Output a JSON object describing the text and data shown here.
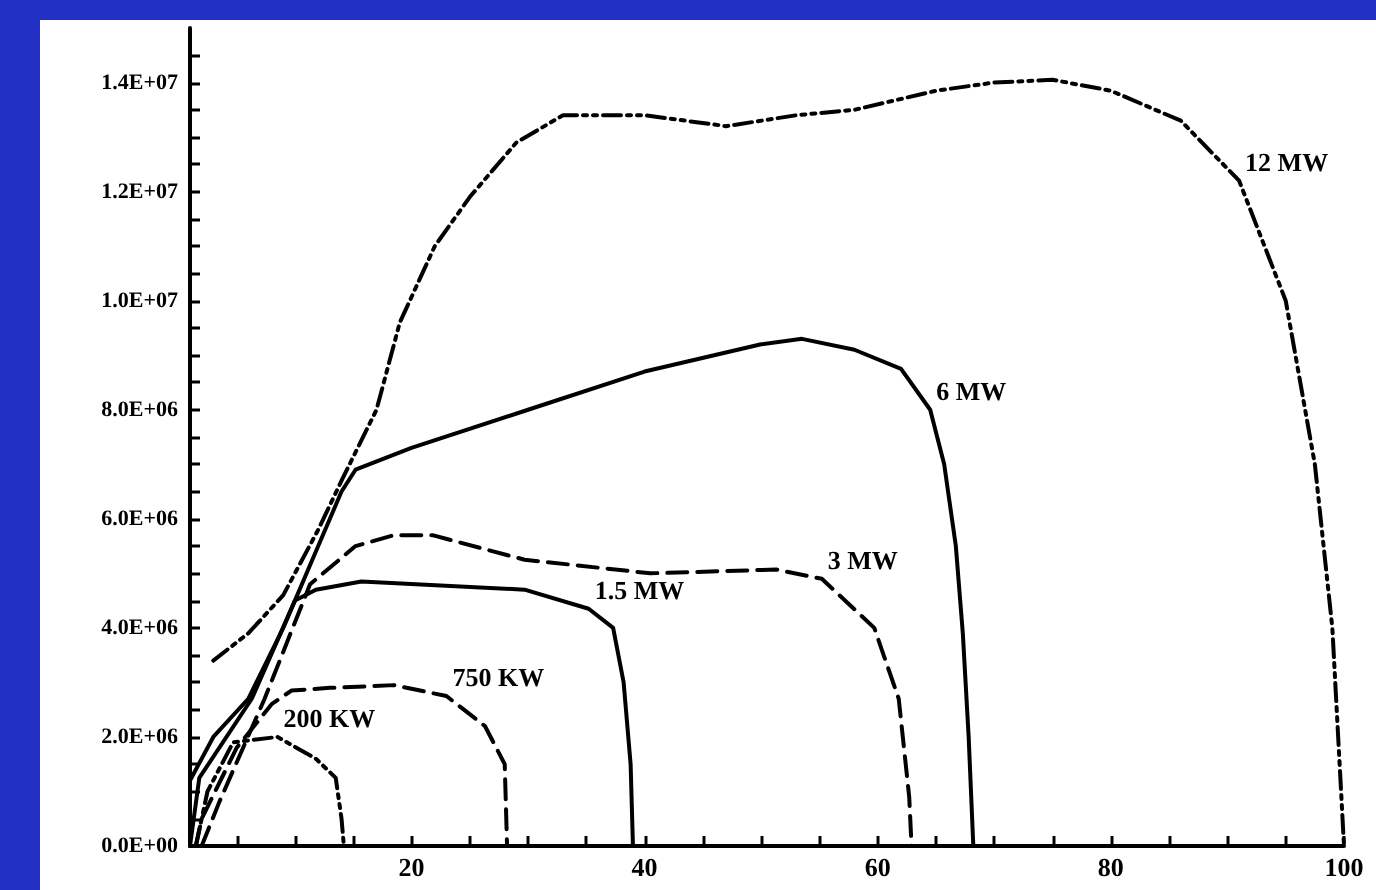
{
  "chart_data": {
    "type": "line",
    "grid": false,
    "legend": false,
    "marker": "none",
    "xlim": [
      1,
      100
    ],
    "xticks": [
      {
        "value": 5,
        "label": null
      },
      {
        "value": 10,
        "label": null
      },
      {
        "value": 15,
        "label": null
      },
      20,
      {
        "value": 25,
        "label": null
      },
      {
        "value": 30,
        "label": null
      },
      {
        "value": 35,
        "label": null
      },
      40,
      {
        "value": 45,
        "label": null
      },
      {
        "value": 50,
        "label": null
      },
      {
        "value": 55,
        "label": null
      },
      60,
      {
        "value": 65,
        "label": null
      },
      {
        "value": 70,
        "label": null
      },
      {
        "value": 75,
        "label": null
      },
      80,
      {
        "value": 85,
        "label": null
      },
      {
        "value": 90,
        "label": null
      },
      {
        "value": 95,
        "label": null
      },
      100
    ],
    "ylim": [
      0,
      15000000
    ],
    "yticks": [
      {
        "value": 0,
        "label": "0.0E+00"
      },
      {
        "value": 500000,
        "label": null
      },
      {
        "value": 1000000,
        "label": null
      },
      {
        "value": 1500000,
        "label": null
      },
      {
        "value": 2000000,
        "label": "2.0E+06"
      },
      {
        "value": 2500000,
        "label": null
      },
      {
        "value": 3000000,
        "label": null
      },
      {
        "value": 3500000,
        "label": null
      },
      {
        "value": 4000000,
        "label": "4.0E+06"
      },
      {
        "value": 4500000,
        "label": null
      },
      {
        "value": 5000000,
        "label": null
      },
      {
        "value": 5500000,
        "label": null
      },
      {
        "value": 6000000,
        "label": "6.0E+06"
      },
      {
        "value": 6500000,
        "label": null
      },
      {
        "value": 7000000,
        "label": null
      },
      {
        "value": 7500000,
        "label": null
      },
      {
        "value": 8000000,
        "label": "8.0E+06"
      },
      {
        "value": 8500000,
        "label": null
      },
      {
        "value": 9000000,
        "label": null
      },
      {
        "value": 9500000,
        "label": null
      },
      {
        "value": 10000000,
        "label": "1.0E+07"
      },
      {
        "value": 10500000,
        "label": null
      },
      {
        "value": 11000000,
        "label": null
      },
      {
        "value": 11500000,
        "label": null
      },
      {
        "value": 12000000,
        "label": "1.2E+07"
      },
      {
        "value": 12500000,
        "label": null
      },
      {
        "value": 13000000,
        "label": null
      },
      {
        "value": 13500000,
        "label": null
      },
      {
        "value": 14000000,
        "label": "1.4E+07"
      },
      {
        "value": 14500000,
        "label": null
      }
    ],
    "series": [
      {
        "name": "12 MW",
        "color": "#000000",
        "line_style": "dotted",
        "x": [
          3,
          6,
          9,
          12,
          14,
          17,
          19,
          22,
          25,
          29,
          33,
          40,
          47,
          53,
          58,
          65,
          70,
          75,
          80,
          86,
          91,
          95,
          97.5,
          99,
          100
        ],
        "values": [
          3400000,
          3900000,
          4600000,
          5800000,
          6700000,
          8000000,
          9600000,
          11000000,
          11900000,
          12900000,
          13400000,
          13400000,
          13200000,
          13400000,
          13500000,
          13850000,
          14000000,
          14050000,
          13850000,
          13300000,
          12200000,
          10000000,
          7000000,
          4000000,
          0
        ]
      },
      {
        "name": "6 MW",
        "color": "#000000",
        "line_style": "solid",
        "x": [
          1,
          3,
          6,
          9,
          12,
          14,
          15.2,
          20,
          30,
          40,
          50,
          53.5,
          58,
          62,
          64.5,
          65.7,
          66.7,
          67.3,
          67.8,
          68.2
        ],
        "values": [
          1200000,
          2000000,
          2700000,
          4000000,
          5500000,
          6500000,
          6900000,
          7300000,
          8000000,
          8700000,
          9200000,
          9300000,
          9100000,
          8750000,
          8000000,
          7000000,
          5500000,
          3900000,
          2000000,
          0
        ]
      },
      {
        "name": "3 MW",
        "color": "#000000",
        "line_style": "dashed",
        "x": [
          2,
          3.5,
          7.4,
          11.3,
          15.2,
          18.5,
          21.8,
          29.7,
          40.5,
          51.3,
          55.2,
          59.7,
          61.8,
          62.7,
          62.9
        ],
        "values": [
          0,
          800000,
          2700000,
          4800000,
          5500000,
          5700000,
          5700000,
          5250000,
          5000000,
          5070000,
          4900000,
          4000000,
          2700000,
          900000,
          0
        ]
      },
      {
        "name": "1.5 MW",
        "color": "#000000",
        "line_style": "solid",
        "x": [
          1,
          1.8,
          6.3,
          10,
          11.8,
          15.7,
          29.7,
          35.2,
          37.3,
          38.2,
          38.8,
          39
        ],
        "values": [
          0,
          1250000,
          2700000,
          4500000,
          4700000,
          4850000,
          4700000,
          4350000,
          4000000,
          3000000,
          1500000,
          0
        ]
      },
      {
        "name": "750 KW",
        "color": "#000000",
        "line_style": "dashed",
        "x": [
          1.5,
          2,
          5,
          8,
          9.7,
          13,
          18.5,
          23,
          26.3,
          28,
          28.2
        ],
        "values": [
          0,
          500000,
          1800000,
          2600000,
          2850000,
          2900000,
          2950000,
          2750000,
          2200000,
          1500000,
          0
        ]
      },
      {
        "name": "200 KW",
        "color": "#000000",
        "line_style": "dotted",
        "x": [
          1.5,
          2.5,
          4.7,
          8.5,
          11.8,
          13.5,
          14,
          14.2
        ],
        "values": [
          0,
          1000000,
          1900000,
          2000000,
          1600000,
          1250000,
          500000,
          0
        ]
      }
    ]
  }
}
